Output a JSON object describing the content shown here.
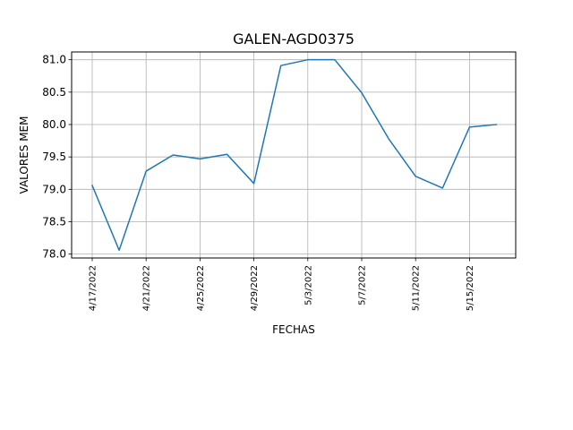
{
  "chart_data": {
    "type": "line",
    "title": "GALEN-AGD0375",
    "xlabel": "FECHAS",
    "ylabel": "VALORES MEM",
    "x": [
      "4/17/2022",
      "4/19/2022",
      "4/21/2022",
      "4/23/2022",
      "4/25/2022",
      "4/27/2022",
      "4/29/2022",
      "5/1/2022",
      "5/3/2022",
      "5/5/2022",
      "5/7/2022",
      "5/9/2022",
      "5/11/2022",
      "5/13/2022",
      "5/15/2022",
      "5/17/2022"
    ],
    "series": [
      {
        "values": [
          79.06,
          78.06,
          79.28,
          79.53,
          79.47,
          79.54,
          79.09,
          80.91,
          81.0,
          81.0,
          80.49,
          79.78,
          79.2,
          79.02,
          79.96,
          80.0
        ]
      }
    ],
    "xticks": [
      "4/17/2022",
      "4/21/2022",
      "4/25/2022",
      "4/29/2022",
      "5/3/2022",
      "5/7/2022",
      "5/11/2022",
      "5/15/2022"
    ],
    "yticks": [
      "78.0",
      "78.5",
      "79.0",
      "79.5",
      "80.0",
      "80.5",
      "81.0"
    ],
    "ylim": [
      77.94,
      81.12
    ],
    "grid": true,
    "line_color": "#1f77b4"
  }
}
